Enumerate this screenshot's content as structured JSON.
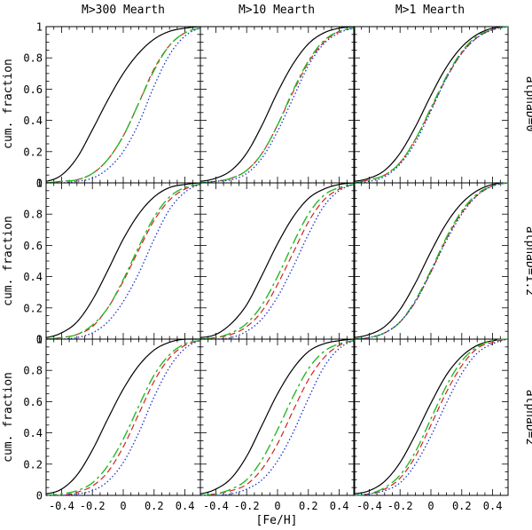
{
  "figure": {
    "column_titles": [
      "M>300 Mearth",
      "M>10 Mearth",
      "M>1 Mearth"
    ],
    "row_titles": [
      "alphaD=0",
      "alphaD=1.2",
      "alphaD=2"
    ],
    "ylabel": "cum. fraction",
    "xlabel": "[Fe/H]"
  },
  "chart_data": {
    "type": "line",
    "layout": "3x3 grid of panels, shared axes",
    "xlim": [
      -0.5,
      0.5
    ],
    "ylim": [
      0,
      1
    ],
    "x_ticks": [
      -0.4,
      -0.2,
      0,
      0.2,
      0.4
    ],
    "x_tick_labels": [
      "-0.4",
      "-0.2",
      "0",
      "0.2",
      "0.4"
    ],
    "y_ticks": [
      0,
      0.2,
      0.4,
      0.6,
      0.8,
      1
    ],
    "y_tick_labels": [
      "0",
      "0.2",
      "0.4",
      "0.6",
      "0.8",
      "1"
    ],
    "x": [
      -0.5,
      -0.4,
      -0.3,
      -0.2,
      -0.1,
      0.0,
      0.1,
      0.2,
      0.3,
      0.4,
      0.5
    ],
    "series_styles": [
      {
        "color": "#000000",
        "dash": "",
        "width": 1.2
      },
      {
        "color": "#d62020",
        "dash": "7 4",
        "width": 1.2
      },
      {
        "color": "#22bb22",
        "dash": "12 4 3 4",
        "width": 1.4
      },
      {
        "color": "#1a2fd0",
        "dash": "1.5 2.5",
        "width": 1.3
      }
    ],
    "panels": [
      {
        "row": 0,
        "col": 0,
        "series": [
          {
            "values": [
              0.01,
              0.05,
              0.16,
              0.34,
              0.53,
              0.7,
              0.83,
              0.92,
              0.97,
              0.99,
              1.0
            ]
          },
          {
            "values": [
              0.0,
              0.01,
              0.02,
              0.06,
              0.15,
              0.3,
              0.51,
              0.73,
              0.88,
              0.96,
              0.99
            ]
          },
          {
            "values": [
              0.0,
              0.01,
              0.02,
              0.06,
              0.15,
              0.3,
              0.51,
              0.72,
              0.88,
              0.96,
              0.99
            ]
          },
          {
            "values": [
              0.0,
              0.0,
              0.01,
              0.03,
              0.09,
              0.2,
              0.38,
              0.62,
              0.82,
              0.94,
              0.99
            ]
          }
        ]
      },
      {
        "row": 0,
        "col": 1,
        "series": [
          {
            "values": [
              0.01,
              0.03,
              0.08,
              0.19,
              0.37,
              0.58,
              0.76,
              0.89,
              0.96,
              0.99,
              1.0
            ]
          },
          {
            "values": [
              0.0,
              0.01,
              0.03,
              0.08,
              0.19,
              0.37,
              0.58,
              0.77,
              0.9,
              0.97,
              0.99
            ]
          },
          {
            "values": [
              0.0,
              0.01,
              0.03,
              0.08,
              0.19,
              0.37,
              0.59,
              0.78,
              0.91,
              0.97,
              0.99
            ]
          },
          {
            "values": [
              0.0,
              0.01,
              0.02,
              0.06,
              0.16,
              0.33,
              0.54,
              0.75,
              0.89,
              0.96,
              0.99
            ]
          }
        ]
      },
      {
        "row": 0,
        "col": 2,
        "series": [
          {
            "values": [
              0.01,
              0.03,
              0.08,
              0.19,
              0.36,
              0.56,
              0.74,
              0.87,
              0.95,
              0.99,
              1.0
            ]
          },
          {
            "values": [
              0.0,
              0.02,
              0.05,
              0.13,
              0.28,
              0.47,
              0.67,
              0.83,
              0.93,
              0.98,
              1.0
            ]
          },
          {
            "values": [
              0.0,
              0.02,
              0.05,
              0.13,
              0.28,
              0.48,
              0.68,
              0.84,
              0.94,
              0.98,
              1.0
            ]
          },
          {
            "values": [
              0.0,
              0.01,
              0.04,
              0.12,
              0.26,
              0.46,
              0.67,
              0.83,
              0.93,
              0.98,
              1.0
            ]
          }
        ]
      },
      {
        "row": 1,
        "col": 0,
        "series": [
          {
            "values": [
              0.01,
              0.04,
              0.11,
              0.25,
              0.44,
              0.64,
              0.8,
              0.91,
              0.97,
              0.99,
              1.0
            ]
          },
          {
            "values": [
              0.0,
              0.01,
              0.03,
              0.08,
              0.2,
              0.37,
              0.57,
              0.76,
              0.89,
              0.96,
              0.99
            ]
          },
          {
            "values": [
              0.0,
              0.01,
              0.03,
              0.09,
              0.2,
              0.38,
              0.59,
              0.78,
              0.91,
              0.97,
              0.99
            ]
          },
          {
            "values": [
              0.0,
              0.0,
              0.01,
              0.04,
              0.11,
              0.24,
              0.42,
              0.64,
              0.83,
              0.94,
              0.99
            ]
          }
        ]
      },
      {
        "row": 1,
        "col": 1,
        "series": [
          {
            "values": [
              0.01,
              0.03,
              0.1,
              0.22,
              0.41,
              0.61,
              0.78,
              0.9,
              0.96,
              0.99,
              1.0
            ]
          },
          {
            "values": [
              0.0,
              0.01,
              0.03,
              0.08,
              0.18,
              0.35,
              0.55,
              0.75,
              0.89,
              0.96,
              0.99
            ]
          },
          {
            "values": [
              0.0,
              0.01,
              0.04,
              0.1,
              0.22,
              0.4,
              0.61,
              0.8,
              0.92,
              0.97,
              0.99
            ]
          },
          {
            "values": [
              0.0,
              0.0,
              0.01,
              0.05,
              0.13,
              0.27,
              0.46,
              0.67,
              0.85,
              0.95,
              0.99
            ]
          }
        ]
      },
      {
        "row": 1,
        "col": 2,
        "series": [
          {
            "values": [
              0.01,
              0.03,
              0.08,
              0.19,
              0.36,
              0.56,
              0.74,
              0.87,
              0.95,
              0.99,
              1.0
            ]
          },
          {
            "values": [
              0.0,
              0.01,
              0.04,
              0.11,
              0.24,
              0.43,
              0.64,
              0.81,
              0.92,
              0.98,
              1.0
            ]
          },
          {
            "values": [
              0.0,
              0.01,
              0.04,
              0.11,
              0.25,
              0.44,
              0.65,
              0.82,
              0.93,
              0.98,
              1.0
            ]
          },
          {
            "values": [
              0.0,
              0.01,
              0.04,
              0.11,
              0.24,
              0.43,
              0.63,
              0.8,
              0.92,
              0.98,
              1.0
            ]
          }
        ]
      },
      {
        "row": 2,
        "col": 0,
        "series": [
          {
            "values": [
              0.01,
              0.04,
              0.13,
              0.29,
              0.49,
              0.68,
              0.83,
              0.93,
              0.98,
              1.0,
              1.0
            ]
          },
          {
            "values": [
              0.0,
              0.0,
              0.02,
              0.06,
              0.15,
              0.31,
              0.52,
              0.73,
              0.88,
              0.96,
              0.99
            ]
          },
          {
            "values": [
              0.0,
              0.01,
              0.03,
              0.08,
              0.19,
              0.36,
              0.57,
              0.77,
              0.9,
              0.97,
              0.99
            ]
          },
          {
            "values": [
              0.0,
              0.0,
              0.01,
              0.03,
              0.09,
              0.21,
              0.4,
              0.63,
              0.82,
              0.94,
              0.99
            ]
          }
        ]
      },
      {
        "row": 2,
        "col": 1,
        "series": [
          {
            "values": [
              0.01,
              0.04,
              0.11,
              0.25,
              0.45,
              0.65,
              0.81,
              0.92,
              0.97,
              0.99,
              1.0
            ]
          },
          {
            "values": [
              0.0,
              0.01,
              0.03,
              0.07,
              0.17,
              0.33,
              0.54,
              0.74,
              0.88,
              0.96,
              0.99
            ]
          },
          {
            "values": [
              0.0,
              0.01,
              0.04,
              0.1,
              0.23,
              0.42,
              0.63,
              0.81,
              0.92,
              0.97,
              0.99
            ]
          },
          {
            "values": [
              0.0,
              0.0,
              0.01,
              0.04,
              0.1,
              0.22,
              0.4,
              0.62,
              0.82,
              0.94,
              0.99
            ]
          }
        ]
      },
      {
        "row": 2,
        "col": 2,
        "series": [
          {
            "values": [
              0.01,
              0.03,
              0.09,
              0.21,
              0.39,
              0.59,
              0.77,
              0.89,
              0.96,
              0.99,
              1.0
            ]
          },
          {
            "values": [
              0.0,
              0.01,
              0.04,
              0.11,
              0.25,
              0.45,
              0.66,
              0.83,
              0.94,
              0.98,
              1.0
            ]
          },
          {
            "values": [
              0.0,
              0.01,
              0.05,
              0.13,
              0.28,
              0.49,
              0.7,
              0.86,
              0.95,
              0.99,
              1.0
            ]
          },
          {
            "values": [
              0.0,
              0.01,
              0.03,
              0.08,
              0.2,
              0.38,
              0.59,
              0.78,
              0.91,
              0.97,
              1.0
            ]
          }
        ]
      }
    ]
  }
}
